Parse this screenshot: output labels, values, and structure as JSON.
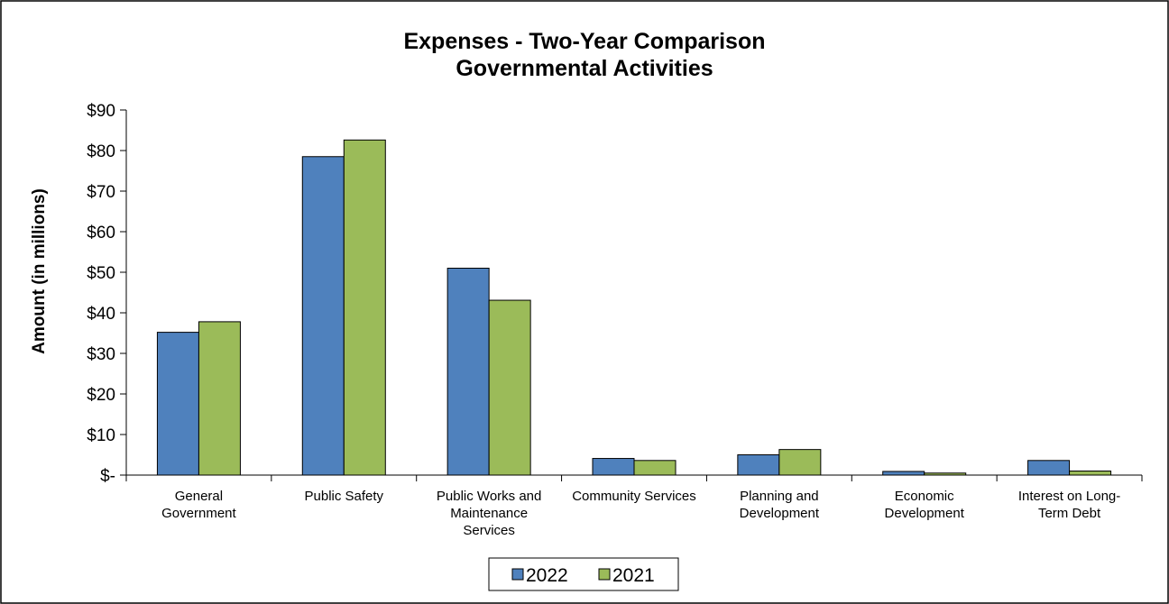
{
  "chart_data": {
    "type": "bar",
    "title": "Expenses - Two-Year Comparison",
    "subtitle": "Governmental Activities",
    "xlabel": "",
    "ylabel": "Amount (in millions)",
    "ylim": [
      0,
      90
    ],
    "y_ticks": [
      0,
      10,
      20,
      30,
      40,
      50,
      60,
      70,
      80,
      90
    ],
    "y_tick_labels": [
      "$-",
      "$10",
      "$20",
      "$30",
      "$40",
      "$50",
      "$60",
      "$70",
      "$80",
      "$90"
    ],
    "categories": [
      [
        "General",
        "Government"
      ],
      [
        "Public Safety"
      ],
      [
        "Public Works and",
        "Maintenance",
        "Services"
      ],
      [
        "Community Services"
      ],
      [
        "Planning and",
        "Development"
      ],
      [
        "Economic",
        "Development"
      ],
      [
        "Interest on Long-",
        "Term Debt"
      ]
    ],
    "series": [
      {
        "name": "2022",
        "color": "#4f81bd",
        "values": [
          35.2,
          78.5,
          51.0,
          4.1,
          5.0,
          0.9,
          3.6
        ]
      },
      {
        "name": "2021",
        "color": "#9bbb59",
        "values": [
          37.8,
          82.6,
          43.1,
          3.6,
          6.3,
          0.5,
          1.0
        ]
      }
    ],
    "grid": false,
    "legend_position": "bottom"
  }
}
